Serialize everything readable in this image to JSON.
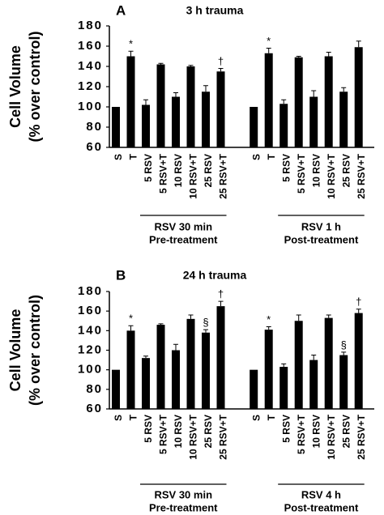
{
  "chart_data": [
    {
      "type": "bar",
      "panel_label": "A",
      "title": "3 h trauma",
      "y_label": [
        "Cell Volume",
        "(% over control)"
      ],
      "categories": [
        "S",
        "T",
        "5 RSV",
        "5 RSV+T",
        "10 RSV",
        "10 RSV+T",
        "25 RSV",
        "25 RSV+T",
        "S",
        "T",
        "5 RSV",
        "5 RSV+T",
        "10 RSV",
        "10 RSV+T",
        "25 RSV",
        "25 RSV+T"
      ],
      "values": [
        100,
        150,
        102,
        142,
        110,
        140,
        115,
        135,
        100,
        153,
        103,
        149,
        110,
        150,
        115,
        159
      ],
      "errors": [
        0,
        5,
        5,
        1,
        4,
        1,
        6,
        3,
        0,
        5,
        4,
        1,
        6,
        4,
        4,
        6
      ],
      "markers": [
        null,
        "*",
        null,
        null,
        null,
        null,
        null,
        "†",
        null,
        "*",
        null,
        null,
        null,
        null,
        null,
        null
      ],
      "color": "#000000",
      "groups": [
        [
          "RSV 30 min",
          "Pre-treatment"
        ],
        [
          "RSV 1 h",
          "Post-treatment"
        ]
      ],
      "ylim": [
        60,
        180
      ],
      "yticks": [
        60,
        80,
        100,
        120,
        140,
        160,
        180
      ]
    },
    {
      "type": "bar",
      "panel_label": "B",
      "title": "24 h trauma",
      "y_label": [
        "Cell Volume",
        "(% over control)"
      ],
      "categories": [
        "S",
        "T",
        "5 RSV",
        "5 RSV+T",
        "10 RSV",
        "10 RSV+T",
        "25 RSV",
        "25 RSV+T",
        "S",
        "T",
        "5 RSV",
        "5 RSV+T",
        "10 RSV",
        "10 RSV+T",
        "25 RSV",
        "25 RSV+T"
      ],
      "values": [
        100,
        140,
        112,
        146,
        120,
        152,
        138,
        165,
        100,
        141,
        103,
        150,
        110,
        153,
        115,
        158
      ],
      "errors": [
        0,
        5,
        2,
        1,
        6,
        4,
        3,
        5,
        0,
        3,
        3,
        6,
        5,
        3,
        3,
        4
      ],
      "markers": [
        null,
        "*",
        null,
        null,
        null,
        null,
        "§",
        "†",
        null,
        "*",
        null,
        null,
        null,
        null,
        "§",
        "†"
      ],
      "color": "#000000",
      "groups": [
        [
          "RSV 30 min",
          "Pre-treatment"
        ],
        [
          "RSV 4 h",
          "Post-treatment"
        ]
      ],
      "ylim": [
        60,
        180
      ],
      "yticks": [
        60,
        80,
        100,
        120,
        140,
        160,
        180
      ]
    }
  ]
}
